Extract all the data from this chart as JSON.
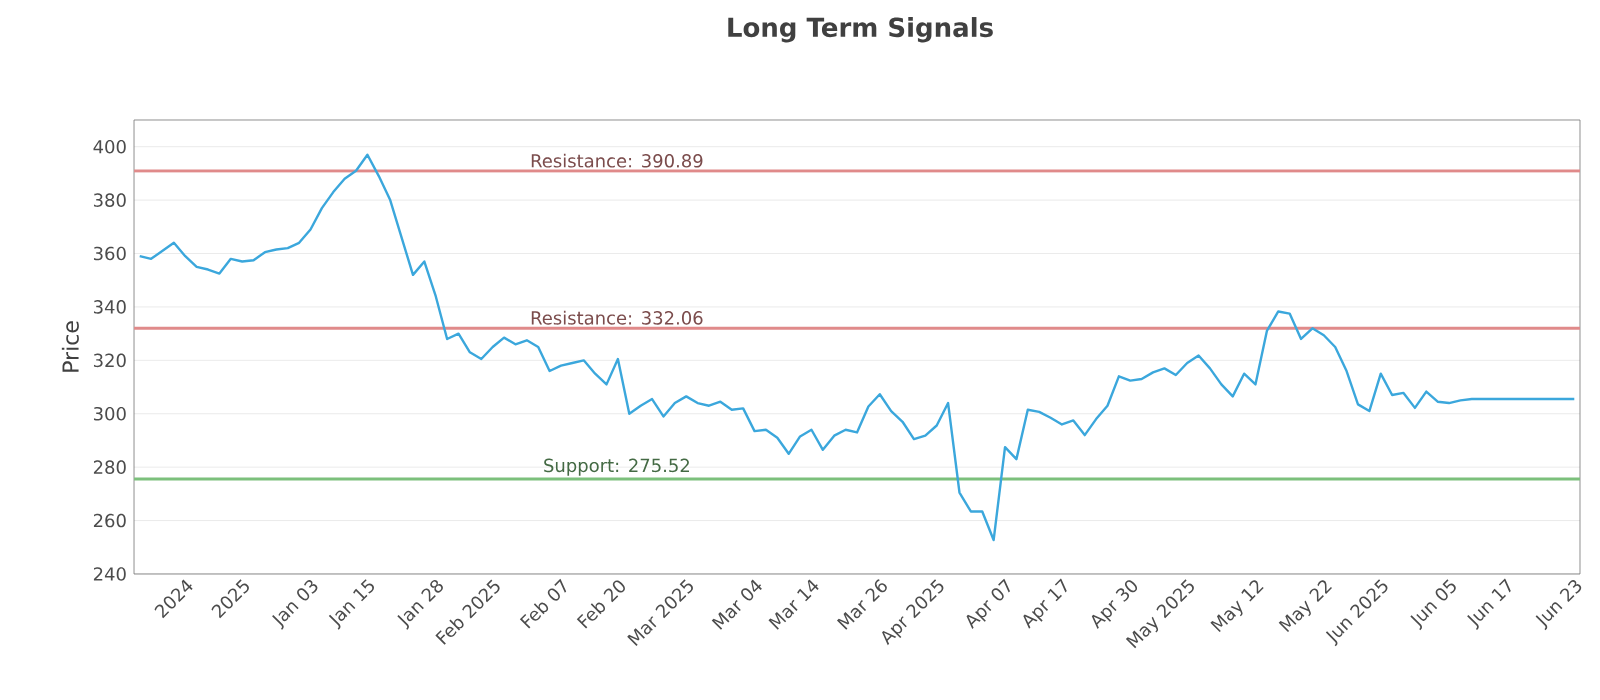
{
  "chart_data": {
    "type": "line",
    "title": "Long Term Signals",
    "ylabel": "Price",
    "categories": [
      null,
      null,
      null,
      null,
      "2024",
      null,
      null,
      null,
      null,
      "2025",
      null,
      null,
      null,
      null,
      null,
      "Jan 03",
      null,
      null,
      null,
      null,
      "Jan 15",
      null,
      null,
      null,
      null,
      null,
      "Jan 28",
      null,
      null,
      null,
      null,
      "Feb 2025",
      null,
      null,
      null,
      null,
      null,
      "Feb 07",
      null,
      null,
      null,
      null,
      "Feb 20",
      null,
      null,
      null,
      null,
      null,
      "Mar 2025",
      null,
      null,
      null,
      null,
      null,
      "Mar 04",
      null,
      null,
      null,
      null,
      "Mar 14",
      null,
      null,
      null,
      null,
      null,
      "Mar 26",
      null,
      null,
      null,
      null,
      "Apr 2025",
      null,
      null,
      null,
      null,
      null,
      "Apr 07",
      null,
      null,
      null,
      null,
      "Apr 17",
      null,
      null,
      null,
      null,
      null,
      "Apr 30",
      null,
      null,
      null,
      null,
      "May 2025",
      null,
      null,
      null,
      null,
      null,
      "May 12",
      null,
      null,
      null,
      null,
      null,
      "May 22",
      null,
      null,
      null,
      null,
      "Jun 2025",
      null,
      null,
      null,
      null,
      null,
      "Jun 05",
      null,
      null,
      null,
      null,
      "Jun 17",
      null,
      null,
      null,
      null,
      null,
      "Jun 23"
    ],
    "series": [
      {
        "color": "#3ba7dc",
        "values": [
          359,
          358,
          361,
          364,
          359,
          355,
          354,
          352.5,
          358,
          357,
          357.5,
          360.5,
          361.5,
          362,
          364,
          369,
          377,
          383,
          388,
          391,
          397,
          389,
          380,
          366,
          352,
          357,
          344,
          328,
          330,
          323,
          320.5,
          325,
          328.5,
          326,
          327.5,
          325,
          316,
          318,
          319,
          320,
          315,
          311,
          320.5,
          300,
          303,
          305.5,
          299,
          304,
          306.5,
          304,
          303,
          304.5,
          301.5,
          302,
          293.5,
          294,
          291,
          285,
          291.5,
          294,
          286.5,
          291.8,
          294,
          293,
          302.7,
          307.3,
          301,
          297,
          290.5,
          291.8,
          295.6,
          304,
          270.5,
          263.4,
          263.4,
          252.7,
          287.5,
          283,
          301.5,
          300.7,
          298.5,
          296,
          297.5,
          292,
          298,
          303,
          314,
          312.4,
          313,
          315.5,
          317,
          314.5,
          319,
          321.8,
          317,
          311,
          306.5,
          315,
          311,
          331,
          338.3,
          337.5,
          328,
          332,
          329.4,
          325,
          316,
          303.5,
          301,
          315,
          307,
          307.8,
          302.2,
          308.3,
          304.5,
          304,
          305,
          305.5,
          305.5,
          305.5,
          305.5,
          305.5,
          305.5,
          305.5,
          305.5,
          305.5,
          305.5
        ]
      }
    ],
    "ylim": [
      240,
      410
    ],
    "yticks": [
      240,
      260,
      280,
      300,
      320,
      340,
      360,
      380,
      400
    ],
    "grid": "y",
    "marker": "none",
    "line_style": "solid",
    "ref_lines": [
      {
        "axis": "y",
        "value": 390.89,
        "label": "Resistance: 390.89",
        "color": "#e08a8a"
      },
      {
        "axis": "y",
        "value": 332.06,
        "label": "Resistance: 332.06",
        "color": "#e08a8a"
      },
      {
        "axis": "y",
        "value": 275.52,
        "label": "Support: 275.52",
        "color": "#7cc07c"
      }
    ]
  }
}
